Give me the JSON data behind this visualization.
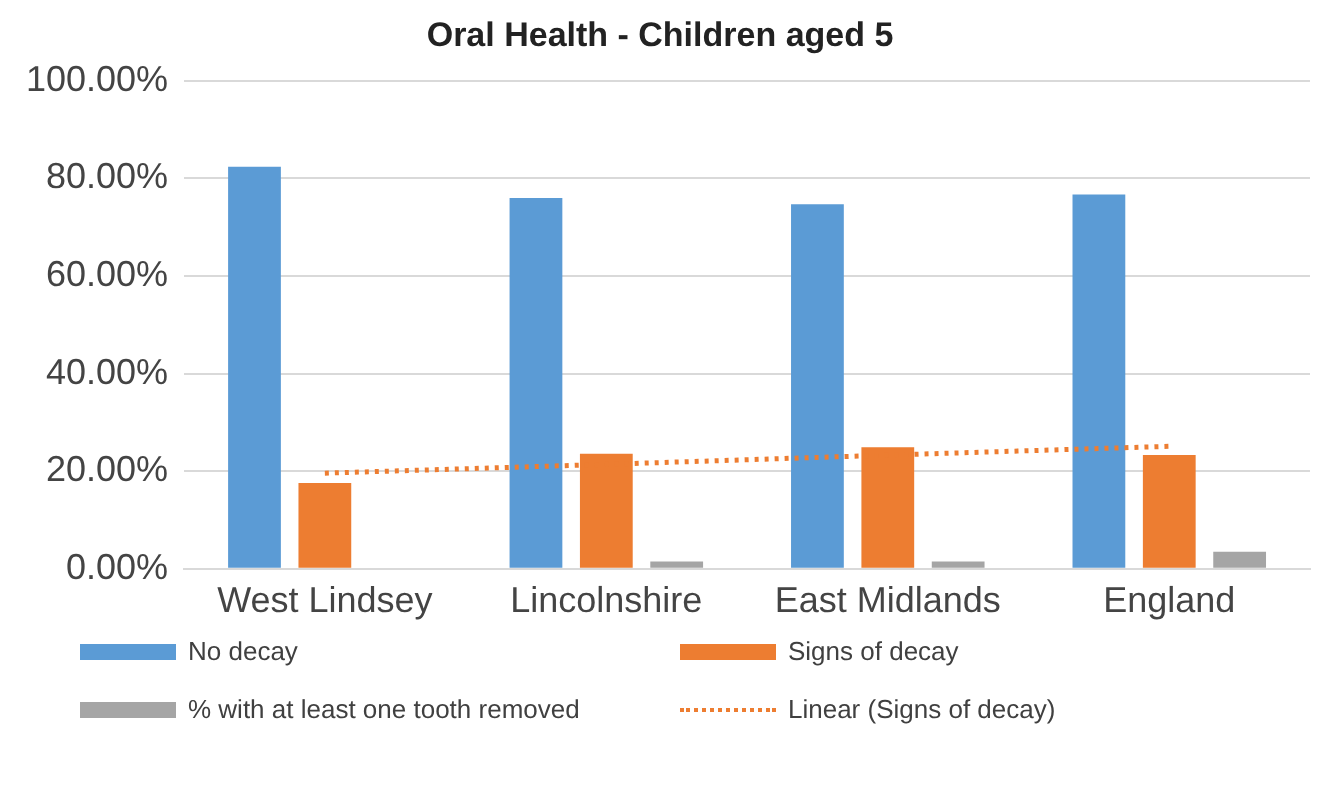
{
  "chart_data": {
    "type": "bar",
    "title": "Oral Health - Children aged 5",
    "categories": [
      "West Lindsey",
      "Lincolnshire",
      "East Midlands",
      "England"
    ],
    "series": [
      {
        "name": "No decay",
        "color": "#5b9bd5",
        "values": [
          82.4,
          76,
          74.7,
          76.7
        ]
      },
      {
        "name": "Signs of decay",
        "color": "#ed7d31",
        "values": [
          17.6,
          23.6,
          24.9,
          23.3
        ]
      },
      {
        "name": "% with at least one tooth removed",
        "color": "#a5a5a5",
        "values": [
          0,
          1.5,
          1.5,
          3.5
        ]
      },
      {
        "name": "Linear (Signs of decay)",
        "type": "line",
        "color": "#ed7d31",
        "line_style": "dotted",
        "marker": "none",
        "x": [
          "West Lindsey",
          "Lincolnshire",
          "East Midlands",
          "England"
        ],
        "values": [
          19.6,
          21.4,
          23.3,
          25.1
        ]
      }
    ],
    "ylim": [
      0,
      100
    ],
    "yticks": [
      {
        "value": 0,
        "label": "0.00%"
      },
      {
        "value": 20,
        "label": "20.00%"
      },
      {
        "value": 40,
        "label": "40.00%"
      },
      {
        "value": 60,
        "label": "60.00%"
      },
      {
        "value": 80,
        "label": "80.00%"
      },
      {
        "value": 100,
        "label": "100.00%"
      }
    ],
    "grid": "y",
    "legend": "bottom"
  }
}
